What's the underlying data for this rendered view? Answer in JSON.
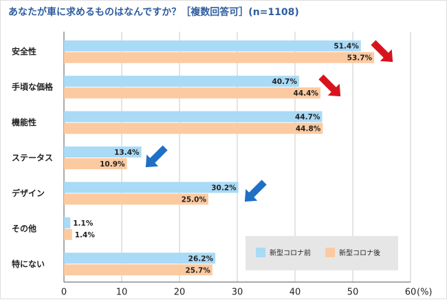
{
  "chart_data": {
    "type": "bar",
    "orientation": "horizontal",
    "title": "あなたが車に求めるものはなんですか？［複数回答可］(n=1108)",
    "categories": [
      "安全性",
      "手頃な価格",
      "機能性",
      "ステータス",
      "デザイン",
      "その他",
      "特にない"
    ],
    "series": [
      {
        "name": "新型コロナ前",
        "color": "#a9daf6",
        "values": [
          51.4,
          40.7,
          44.7,
          13.4,
          30.2,
          1.1,
          26.2
        ],
        "value_labels": [
          "51.4%",
          "40.7%",
          "44.7%",
          "13.4%",
          "30.2%",
          "1.1%",
          "26.2%"
        ]
      },
      {
        "name": "新型コロナ後",
        "color": "#fccaa1",
        "values": [
          53.7,
          44.4,
          44.8,
          10.9,
          25.0,
          1.4,
          25.7
        ],
        "value_labels": [
          "53.7%",
          "44.4%",
          "44.8%",
          "10.9%",
          "25.0%",
          "1.4%",
          "25.7%"
        ]
      }
    ],
    "x_label": "(%)",
    "xlim": [
      0,
      60
    ],
    "xticks": [
      0,
      10,
      20,
      30,
      40,
      50,
      60
    ],
    "grid": true,
    "legend": "lower right"
  }
}
